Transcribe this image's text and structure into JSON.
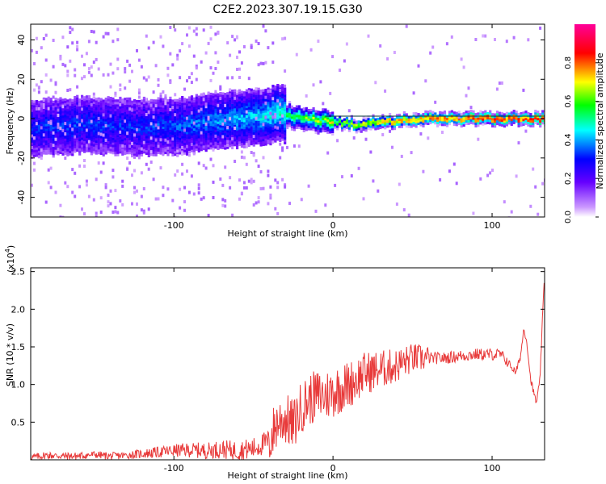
{
  "title": "C2E2.2023.307.19.15.G30",
  "chart_data": [
    {
      "type": "heatmap",
      "xlabel": "Height of straight line (km)",
      "ylabel": "Frequency (Hz)",
      "xlim": [
        -190,
        133
      ],
      "ylim": [
        -50,
        48
      ],
      "xticks": [
        -100,
        0,
        100
      ],
      "yticks": [
        -40,
        -20,
        0,
        20,
        40
      ],
      "colorbar": {
        "label": "Normalized spectral amplitude",
        "ticks": [
          "0.0",
          "0.2",
          "0.4",
          "0.6",
          "0.8"
        ],
        "range": [
          0,
          1
        ],
        "stops": [
          "#ffffff",
          "#8800ff",
          "#0000ff",
          "#00ffff",
          "#00ff00",
          "#ffff00",
          "#ff0000",
          "#ff0099"
        ]
      },
      "ridge": {
        "x": [
          -190,
          -160,
          -130,
          -100,
          -80,
          -60,
          -45,
          -35,
          -25,
          -15,
          -5,
          5,
          15,
          25,
          40,
          55,
          75,
          100,
          133
        ],
        "center_hz": [
          -5,
          -3,
          -4,
          -4,
          -2,
          0,
          1,
          3,
          1,
          0,
          -1,
          -2,
          -3,
          -2,
          -1,
          0,
          0,
          0,
          0
        ],
        "amplitude": [
          0.3,
          0.35,
          0.3,
          0.35,
          0.4,
          0.45,
          0.5,
          0.55,
          0.6,
          0.62,
          0.65,
          0.7,
          0.75,
          0.8,
          0.85,
          0.9,
          0.92,
          0.95,
          0.95
        ]
      }
    },
    {
      "type": "line",
      "xlabel": "Height of straight line (km)",
      "ylabel": "SNR (10 * v/v)",
      "multiplier": "(x10",
      "multiplier_exp": "4",
      "multiplier_close": ")",
      "xlim": [
        -190,
        133
      ],
      "ylim": [
        0,
        2.55
      ],
      "xticks": [
        -100,
        0,
        100
      ],
      "yticks": [
        0.5,
        1.0,
        1.5,
        2.0,
        2.5
      ],
      "ytick_labels": [
        "0.5",
        "1.0",
        "1.5",
        "2.0",
        "2.5"
      ],
      "series": [
        {
          "color": "#e83a3a",
          "x": [
            -190,
            -180,
            -170,
            -160,
            -150,
            -140,
            -130,
            -120,
            -110,
            -100,
            -90,
            -80,
            -70,
            -60,
            -50,
            -45,
            -40,
            -35,
            -30,
            -25,
            -20,
            -15,
            -10,
            -5,
            0,
            10,
            20,
            30,
            40,
            50,
            60,
            70,
            80,
            90,
            100,
            105,
            110,
            115,
            118,
            120,
            122,
            124,
            126,
            128,
            130,
            133
          ],
          "values": [
            0.03,
            0.06,
            0.05,
            0.05,
            0.07,
            0.05,
            0.06,
            0.08,
            0.1,
            0.12,
            0.13,
            0.12,
            0.14,
            0.12,
            0.15,
            0.2,
            0.25,
            0.5,
            0.55,
            0.45,
            0.7,
            0.8,
            0.85,
            0.85,
            0.9,
            1.0,
            1.15,
            1.2,
            1.25,
            1.35,
            1.35,
            1.35,
            1.38,
            1.4,
            1.4,
            1.4,
            1.3,
            1.15,
            1.4,
            1.75,
            1.55,
            1.1,
            0.9,
            0.75,
            1.05,
            2.5
          ]
        }
      ]
    }
  ]
}
